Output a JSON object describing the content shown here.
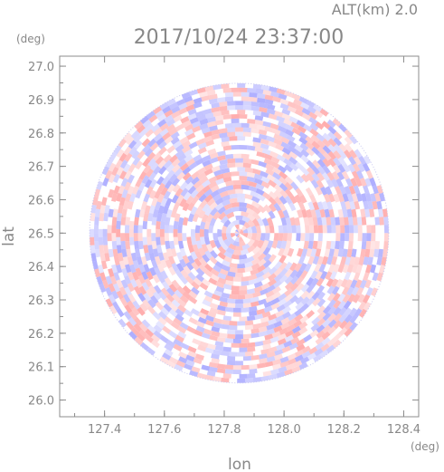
{
  "header": {
    "altitude_label": "ALT(km)  2.0",
    "timestamp": "2017/10/24 23:37:00",
    "y_unit": "(deg)",
    "x_unit": "(deg)"
  },
  "chart_data": {
    "type": "heatmap",
    "title": "2017/10/24 23:37:00",
    "xlabel": "lon",
    "ylabel": "lat",
    "x_unit": "deg",
    "y_unit": "deg",
    "xlim": [
      127.25,
      128.45
    ],
    "ylim": [
      25.95,
      27.03
    ],
    "x_ticks": [
      127.4,
      127.6,
      127.8,
      128.0,
      128.2,
      128.4
    ],
    "x_tick_labels": [
      "127.4",
      "127.6",
      "127.8",
      "128.0",
      "128.2",
      "128.4"
    ],
    "y_ticks": [
      26.0,
      26.1,
      26.2,
      26.3,
      26.4,
      26.5,
      26.6,
      26.7,
      26.8,
      26.9,
      27.0
    ],
    "y_tick_labels": [
      "26.0",
      "26.1",
      "26.2",
      "26.3",
      "26.4",
      "26.5",
      "26.6",
      "26.7",
      "26.8",
      "26.9",
      "27.0"
    ],
    "radar_center": [
      127.85,
      26.5
    ],
    "radar_radius_deg": 0.5,
    "colors": {
      "positive": "#ff9a9a",
      "negative": "#9a9aff",
      "axis": "#8c8c8c",
      "background": "#ffffff"
    },
    "grid": false,
    "legend": "none"
  }
}
